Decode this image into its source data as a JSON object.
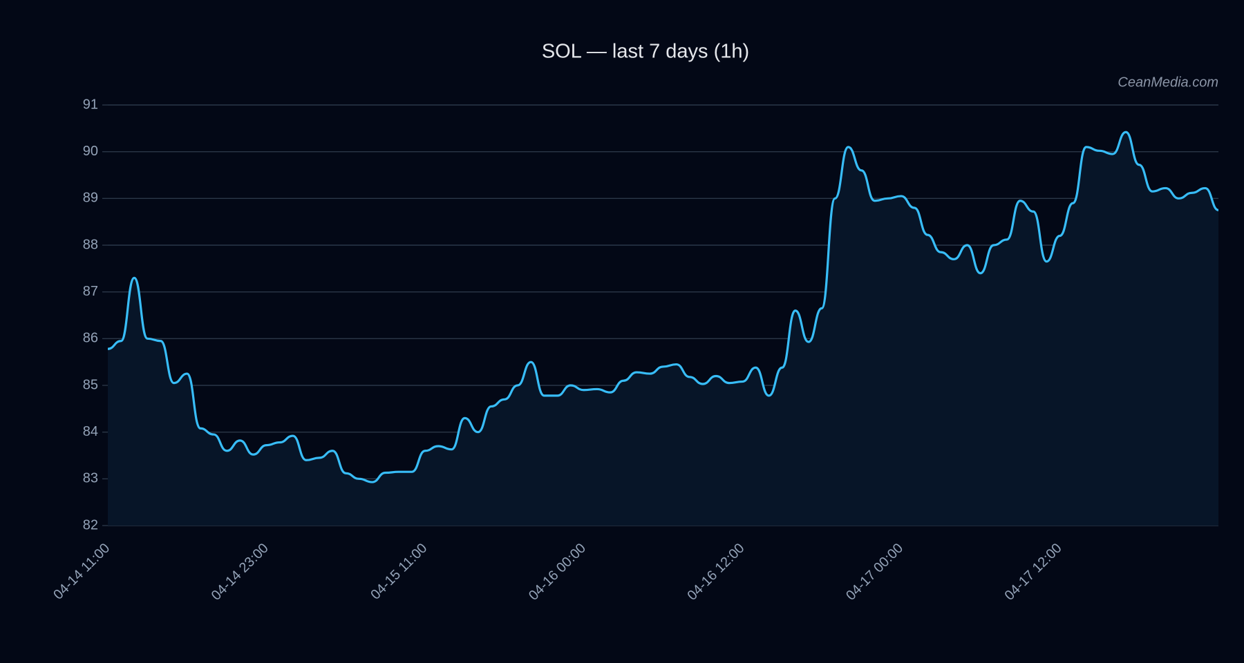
{
  "chart_data": {
    "type": "line",
    "title": "SOL — last 7 days (1h)",
    "watermark": "CeanMedia.com",
    "categories": [
      "04-14 11:00",
      null,
      null,
      null,
      null,
      null,
      null,
      null,
      null,
      null,
      null,
      null,
      "04-14 23:00",
      null,
      null,
      null,
      null,
      null,
      null,
      null,
      null,
      null,
      null,
      null,
      "04-15 11:00",
      null,
      null,
      null,
      null,
      null,
      null,
      null,
      null,
      null,
      null,
      null,
      "04-16 00:00",
      null,
      null,
      null,
      null,
      null,
      null,
      null,
      null,
      null,
      null,
      null,
      "04-16 12:00",
      null,
      null,
      null,
      null,
      null,
      null,
      null,
      null,
      null,
      null,
      null,
      "04-17 00:00",
      null,
      null,
      null,
      null,
      null,
      null,
      null,
      null,
      null,
      null,
      null,
      "04-17 12:00",
      null,
      null,
      null,
      null,
      null,
      null,
      null,
      null,
      null,
      null,
      null,
      null
    ],
    "series": [
      {
        "name": "SOL",
        "color": "#38bdf8",
        "fill": "#071528",
        "values": [
          85.78,
          85.95,
          87.3,
          86.0,
          85.95,
          85.05,
          85.25,
          84.08,
          83.95,
          83.6,
          83.82,
          83.52,
          83.72,
          83.78,
          83.92,
          83.4,
          83.45,
          83.6,
          83.12,
          83.0,
          82.93,
          83.13,
          83.15,
          83.15,
          83.6,
          83.7,
          83.63,
          84.3,
          84.0,
          84.55,
          84.7,
          85.0,
          85.5,
          84.78,
          84.78,
          85.0,
          84.9,
          84.92,
          84.85,
          85.1,
          85.28,
          85.25,
          85.4,
          85.45,
          85.18,
          85.03,
          85.2,
          85.05,
          85.08,
          85.38,
          84.78,
          85.38,
          86.6,
          85.93,
          86.65,
          89.0,
          90.1,
          89.6,
          88.95,
          89.0,
          89.05,
          88.8,
          88.22,
          87.85,
          87.7,
          88.0,
          87.4,
          88.0,
          88.12,
          88.95,
          88.72,
          87.65,
          88.2,
          88.9,
          90.1,
          90.02,
          89.95,
          90.42,
          89.72,
          89.15,
          89.22,
          89.0,
          89.12,
          89.22,
          88.75
        ]
      }
    ],
    "ylim": [
      82,
      91
    ],
    "yticks": [
      82,
      83,
      84,
      85,
      86,
      87,
      88,
      89,
      90,
      91
    ],
    "grid": true
  }
}
